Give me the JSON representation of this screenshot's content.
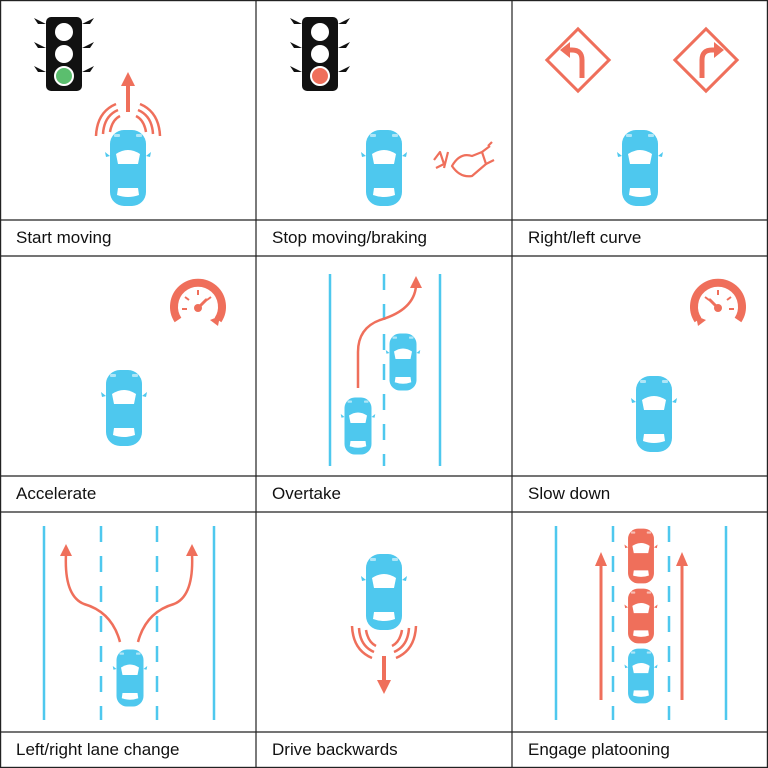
{
  "colors": {
    "car": "#4EC8EE",
    "accent": "#EF6F5B",
    "lane": "#4EC8EE",
    "grid": "#222222",
    "light_body": "#111111"
  },
  "cells": [
    {
      "label": "Start moving",
      "icons": [
        "traffic-light-green-icon",
        "arrow-up-icon",
        "car-icon"
      ]
    },
    {
      "label": "Stop moving/braking",
      "icons": [
        "traffic-light-red-icon",
        "foot-brake-icon",
        "car-icon"
      ]
    },
    {
      "label": "Right/left curve",
      "icons": [
        "left-curve-sign-icon",
        "right-curve-sign-icon",
        "car-icon"
      ]
    },
    {
      "label": "Accelerate",
      "icons": [
        "speedometer-icon",
        "car-icon"
      ]
    },
    {
      "label": "Overtake",
      "icons": [
        "overtake-path-icon",
        "car-icon"
      ]
    },
    {
      "label": "Slow down",
      "icons": [
        "speedometer-icon",
        "car-icon"
      ]
    },
    {
      "label": "Left/right lane change",
      "icons": [
        "lane-change-arrows-icon",
        "car-icon"
      ]
    },
    {
      "label": "Drive backwards",
      "icons": [
        "arrow-down-icon",
        "car-icon"
      ]
    },
    {
      "label": "Engage platooning",
      "icons": [
        "platoon-arrows-icon",
        "car-icon"
      ]
    }
  ]
}
